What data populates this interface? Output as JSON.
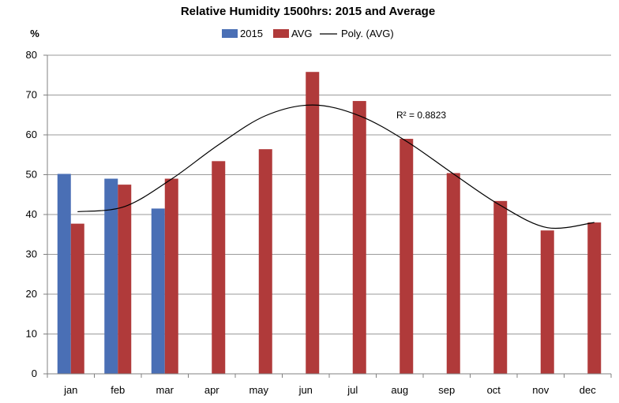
{
  "chart_data": {
    "type": "bar",
    "title": "Relative Humidity 1500hrs: 2015 and Average",
    "ylabel": "%",
    "xlabel": "",
    "ylim": [
      0,
      80
    ],
    "yticks": [
      0,
      10,
      20,
      30,
      40,
      50,
      60,
      70,
      80
    ],
    "grid": true,
    "legend_position": "top",
    "categories": [
      "jan",
      "feb",
      "mar",
      "apr",
      "may",
      "jun",
      "jul",
      "aug",
      "sep",
      "oct",
      "nov",
      "dec"
    ],
    "series": [
      {
        "name": "2015",
        "color": "#4a6fb5",
        "values": [
          50.2,
          49.0,
          41.5,
          null,
          null,
          null,
          null,
          null,
          null,
          null,
          null,
          null
        ]
      },
      {
        "name": "AVG",
        "color": "#b03a3a",
        "values": [
          37.7,
          47.5,
          49.0,
          53.4,
          56.4,
          75.8,
          68.5,
          59.0,
          50.4,
          43.4,
          36.0,
          38.0
        ]
      }
    ],
    "trendline": {
      "name": "Poly. (AVG)",
      "color": "#000000",
      "r2_label": "R² = 0.8823",
      "points": [
        40.7,
        42.0,
        48.9,
        57.5,
        64.8,
        67.5,
        64.8,
        58.4,
        50.2,
        42.3,
        36.7,
        38.0
      ]
    }
  }
}
